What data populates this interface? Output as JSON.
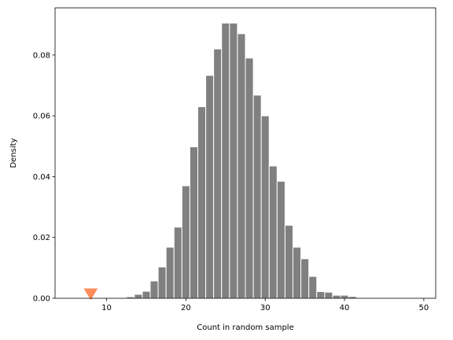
{
  "chart_data": {
    "type": "bar",
    "title": "",
    "xlabel": "Count in random sample",
    "ylabel": "Density",
    "xlim": [
      3.5,
      51.5
    ],
    "ylim": [
      0,
      0.0955
    ],
    "xticks": [
      10,
      20,
      30,
      40,
      50
    ],
    "yticks": [
      0.0,
      0.02,
      0.04,
      0.06,
      0.08
    ],
    "ytick_labels": [
      "0.00",
      "0.02",
      "0.04",
      "0.06",
      "0.08"
    ],
    "grid": false,
    "bar_color": "#808080",
    "bar_edge_color": "#ffffff",
    "bins": [
      {
        "x": 13,
        "y": 0.0005
      },
      {
        "x": 14,
        "y": 0.0013
      },
      {
        "x": 15,
        "y": 0.0023
      },
      {
        "x": 16,
        "y": 0.0057
      },
      {
        "x": 17,
        "y": 0.0103
      },
      {
        "x": 18,
        "y": 0.0168
      },
      {
        "x": 19,
        "y": 0.0234
      },
      {
        "x": 20,
        "y": 0.037
      },
      {
        "x": 21,
        "y": 0.0498
      },
      {
        "x": 22,
        "y": 0.063
      },
      {
        "x": 23,
        "y": 0.0733
      },
      {
        "x": 24,
        "y": 0.082
      },
      {
        "x": 25,
        "y": 0.0905
      },
      {
        "x": 26,
        "y": 0.0905
      },
      {
        "x": 27,
        "y": 0.087
      },
      {
        "x": 28,
        "y": 0.079
      },
      {
        "x": 29,
        "y": 0.0668
      },
      {
        "x": 30,
        "y": 0.06
      },
      {
        "x": 31,
        "y": 0.0435
      },
      {
        "x": 32,
        "y": 0.0385
      },
      {
        "x": 33,
        "y": 0.024
      },
      {
        "x": 34,
        "y": 0.0168
      },
      {
        "x": 35,
        "y": 0.013
      },
      {
        "x": 36,
        "y": 0.0072
      },
      {
        "x": 37,
        "y": 0.0022
      },
      {
        "x": 38,
        "y": 0.002
      },
      {
        "x": 39,
        "y": 0.001
      },
      {
        "x": 40,
        "y": 0.001
      },
      {
        "x": 41,
        "y": 0.0006
      }
    ],
    "marker": {
      "x": 8,
      "y": 0.0015,
      "shape": "down-triangle",
      "color": "#ff8c5a"
    }
  }
}
